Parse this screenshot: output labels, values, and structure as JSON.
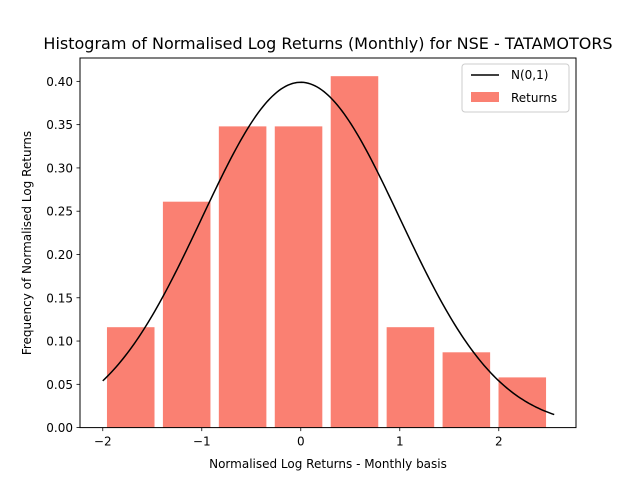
{
  "chart_data": {
    "type": "bar",
    "title": "Histogram of Normalised Log Returns (Monthly) for NSE - TATAMOTORS",
    "xlabel": "Normalised Log Returns - Monthly basis",
    "ylabel": "Frequency of Normalised Log Returns",
    "xlim": [
      -2.23,
      2.78
    ],
    "ylim": [
      0,
      0.427
    ],
    "xticks": [
      -2,
      -1,
      0,
      1,
      2
    ],
    "xtick_labels": [
      "−2",
      "−1",
      "0",
      "1",
      "2"
    ],
    "yticks": [
      0.0,
      0.05,
      0.1,
      0.15,
      0.2,
      0.25,
      0.3,
      0.35,
      0.4
    ],
    "ytick_labels": [
      "0.00",
      "0.05",
      "0.10",
      "0.15",
      "0.20",
      "0.25",
      "0.30",
      "0.35",
      "0.40"
    ],
    "bins": [
      {
        "start": -2.0,
        "end": -1.435,
        "value": 0.116
      },
      {
        "start": -1.435,
        "end": -0.87,
        "value": 0.261
      },
      {
        "start": -0.87,
        "end": -0.305,
        "value": 0.348
      },
      {
        "start": -0.305,
        "end": 0.26,
        "value": 0.348
      },
      {
        "start": 0.26,
        "end": 0.825,
        "value": 0.406
      },
      {
        "start": 0.825,
        "end": 1.39,
        "value": 0.116
      },
      {
        "start": 1.39,
        "end": 1.955,
        "value": 0.087
      },
      {
        "start": 1.955,
        "end": 2.52,
        "value": 0.058
      }
    ],
    "bar_rwidth": 0.85,
    "curve": {
      "name": "N(0,1)",
      "x_start": -2.0,
      "x_end": 2.56,
      "mean": 0,
      "std": 1
    },
    "series": [
      {
        "name": "N(0,1)",
        "kind": "line",
        "color": "#000000"
      },
      {
        "name": "Returns",
        "kind": "bar",
        "color": "#fa8072"
      }
    ],
    "legend_position": "upper right",
    "grid": false
  }
}
